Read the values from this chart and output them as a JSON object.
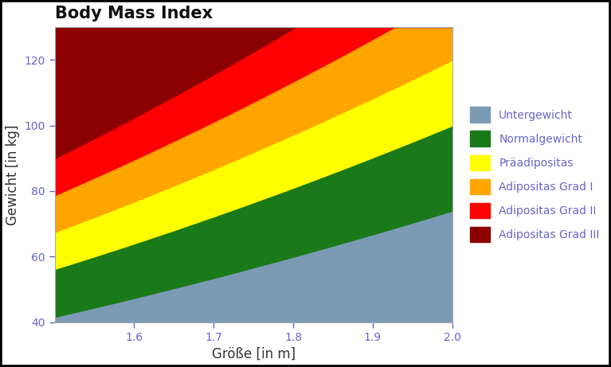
{
  "title": "Body Mass Index",
  "xlabel": "Größe [in m]",
  "ylabel": "Gewicht [in kg]",
  "xlim": [
    1.5,
    2.0
  ],
  "ylim": [
    40,
    130
  ],
  "xticks": [
    1.6,
    1.7,
    1.8,
    1.9,
    2.0
  ],
  "yticks": [
    40,
    60,
    80,
    100,
    120
  ],
  "bmi_limits": [
    18.5,
    25.0,
    30.0,
    35.0,
    40.0
  ],
  "y_max": 130,
  "colors": [
    "#7B9BB5",
    "#1A7A1A",
    "#FFFF00",
    "#FFA500",
    "#FF0000",
    "#8B0000"
  ],
  "labels": [
    "Untergewicht",
    "Normalgewicht",
    "Präadipositas",
    "Adipositas Grad I",
    "Adipositas Grad II",
    "Adipositas Grad III"
  ],
  "bg_color": "#EBEBEB",
  "grid_color": "#FFFFFF",
  "tick_color": "#6666CC",
  "label_color": "#333333",
  "title_fontsize": 15,
  "axis_label_fontsize": 12,
  "tick_fontsize": 10,
  "legend_fontsize": 10
}
